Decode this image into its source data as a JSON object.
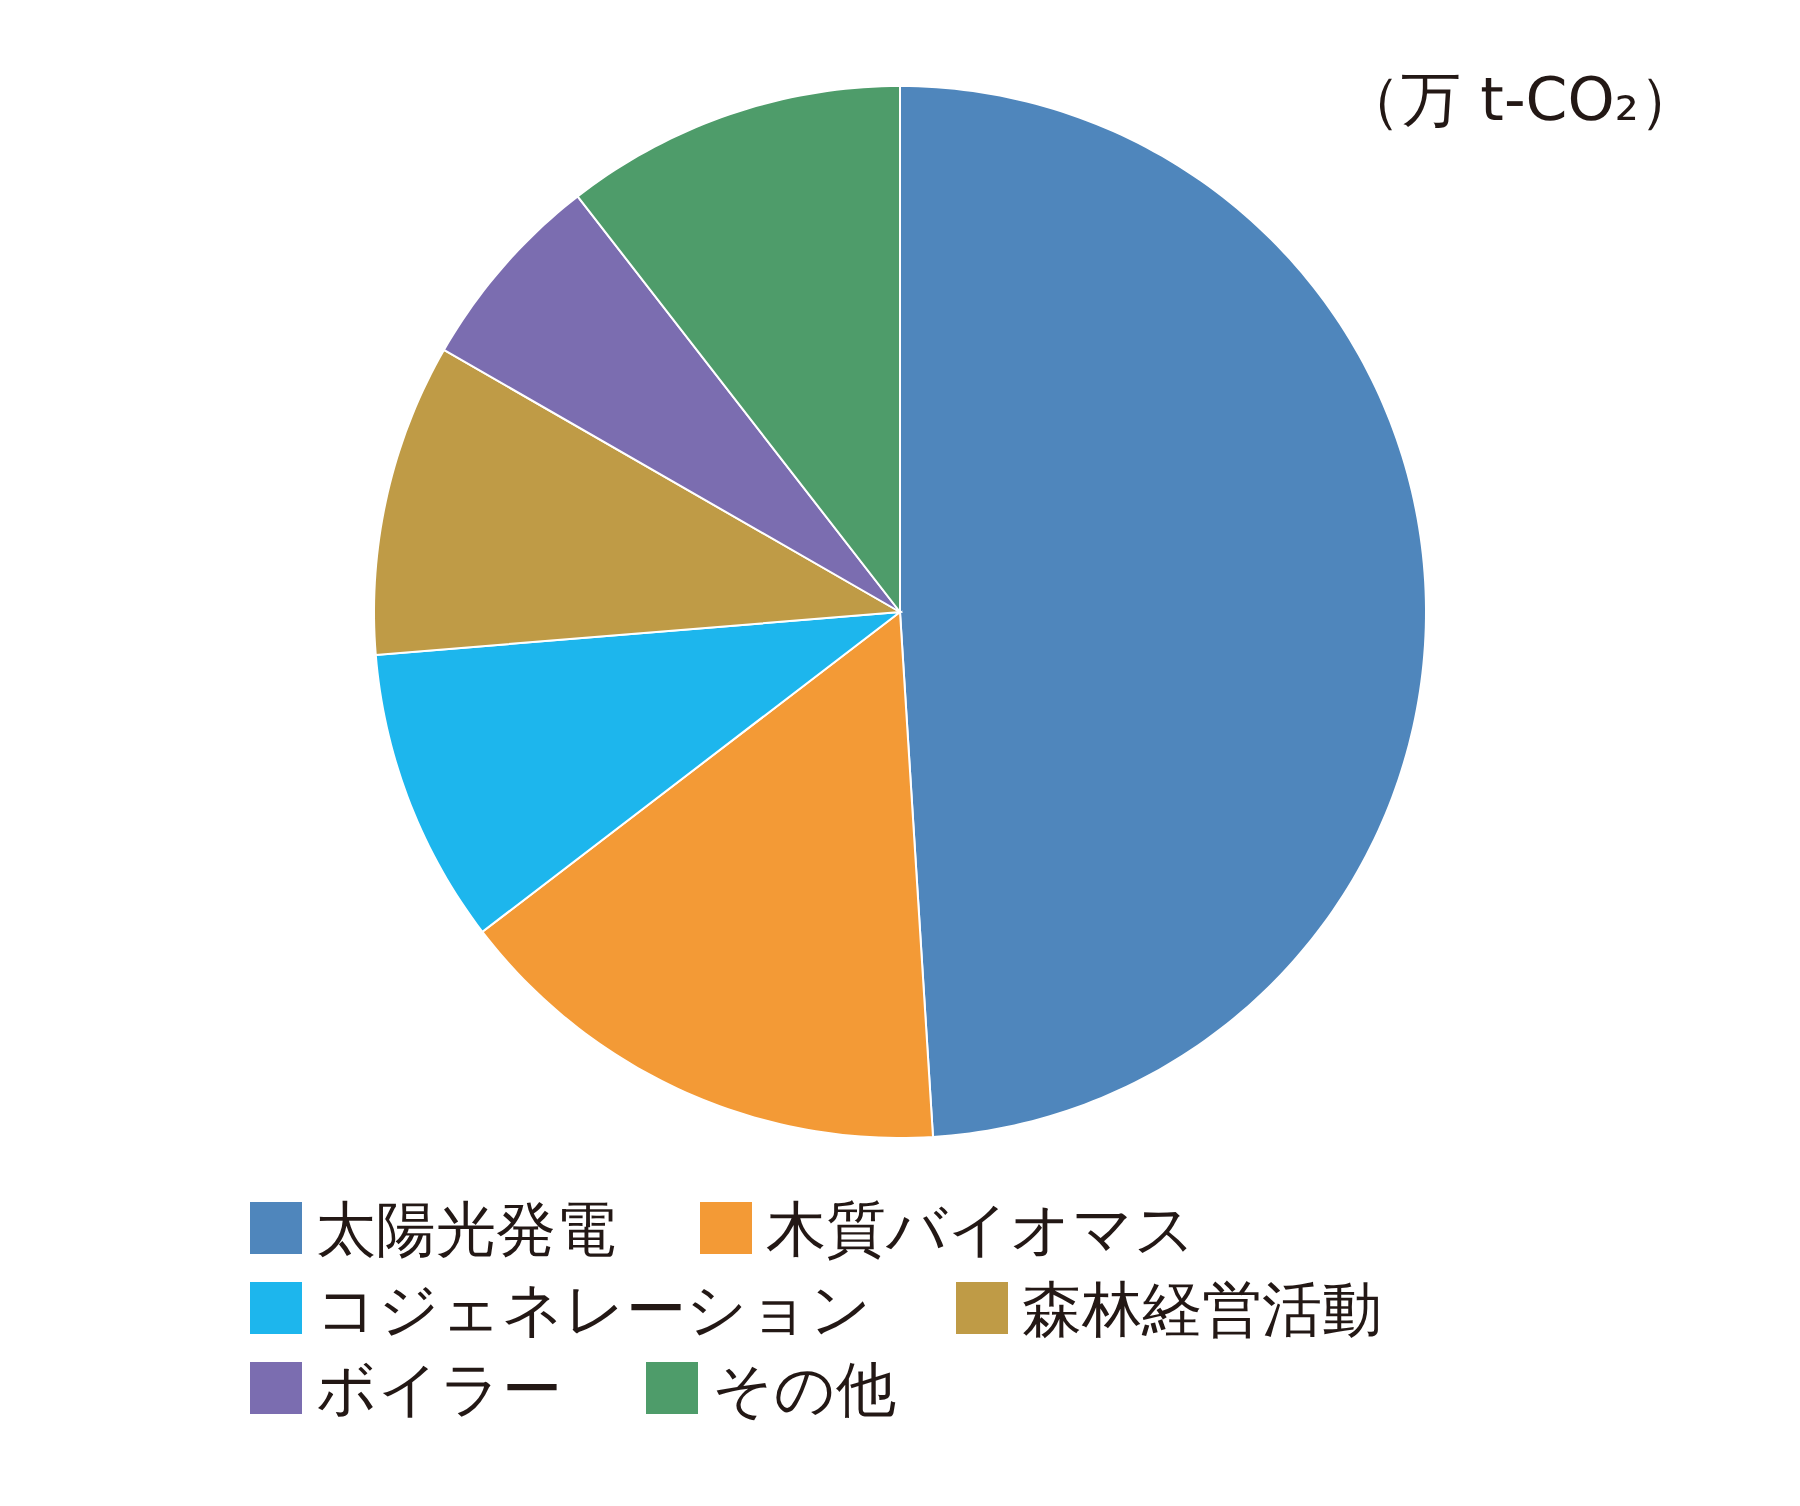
{
  "chart_data": {
    "type": "pie",
    "categories": [
      "太陽光発電",
      "木質バイオマス",
      "コジェネレーション",
      "森林経営活動",
      "ボイラー",
      "その他"
    ],
    "values": [
      49.0,
      15.6,
      9.1,
      9.6,
      6.2,
      10.5
    ],
    "colors": [
      "#4f86bc",
      "#f39a36",
      "#1db6ed",
      "#bf9b46",
      "#7b6db0",
      "#4e9c6a"
    ],
    "annotations": [
      "（万 t-CO₂）"
    ],
    "legend": "bottom"
  }
}
